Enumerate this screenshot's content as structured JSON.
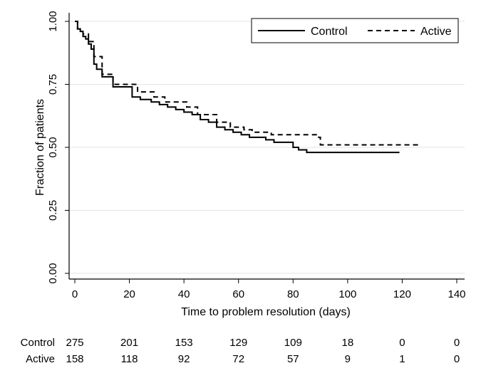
{
  "chart_data": {
    "type": "line",
    "title": "",
    "xlabel": "Time to problem resolution (days)",
    "ylabel": "Fraction of patients",
    "xlim": [
      0,
      140
    ],
    "ylim": [
      0,
      1
    ],
    "x_ticks": [
      "0",
      "20",
      "40",
      "60",
      "80",
      "100",
      "120",
      "140"
    ],
    "y_ticks": [
      "0.00",
      "0.25",
      "0.50",
      "0.75",
      "1.00"
    ],
    "grid": "horizontal",
    "legend_position": "top-right",
    "series": [
      {
        "name": "Control",
        "style": "solid",
        "color": "#000000",
        "x": [
          0,
          1,
          2,
          3,
          4,
          5,
          6,
          7,
          8,
          10,
          14,
          17,
          21,
          24,
          28,
          31,
          34,
          37,
          40,
          43,
          46,
          49,
          52,
          55,
          58,
          61,
          64,
          70,
          73,
          76,
          80,
          82,
          84,
          85,
          119
        ],
        "y": [
          1.0,
          0.97,
          0.96,
          0.94,
          0.93,
          0.91,
          0.89,
          0.83,
          0.81,
          0.78,
          0.74,
          0.74,
          0.7,
          0.69,
          0.68,
          0.67,
          0.66,
          0.65,
          0.64,
          0.63,
          0.61,
          0.6,
          0.58,
          0.57,
          0.56,
          0.55,
          0.54,
          0.53,
          0.52,
          0.52,
          0.5,
          0.49,
          0.49,
          0.48,
          0.48
        ]
      },
      {
        "name": "Active",
        "style": "dashed",
        "color": "#000000",
        "x": [
          0,
          1,
          2,
          3,
          5,
          7,
          10,
          14,
          20,
          23,
          29,
          33,
          41,
          45,
          52,
          57,
          62,
          65,
          72,
          76,
          89,
          90,
          126
        ],
        "y": [
          1.0,
          0.97,
          0.96,
          0.95,
          0.92,
          0.86,
          0.79,
          0.75,
          0.75,
          0.72,
          0.7,
          0.68,
          0.66,
          0.63,
          0.6,
          0.58,
          0.57,
          0.56,
          0.55,
          0.55,
          0.54,
          0.51,
          0.51
        ]
      }
    ],
    "risk_table": {
      "times": [
        0,
        20,
        40,
        60,
        80,
        100,
        120,
        140
      ],
      "rows": [
        {
          "label": "Control",
          "counts": [
            "275",
            "201",
            "153",
            "129",
            "109",
            "18",
            "0",
            "0"
          ]
        },
        {
          "label": "Active",
          "counts": [
            "158",
            "118",
            "92",
            "72",
            "57",
            "9",
            "1",
            "0"
          ]
        }
      ]
    }
  }
}
